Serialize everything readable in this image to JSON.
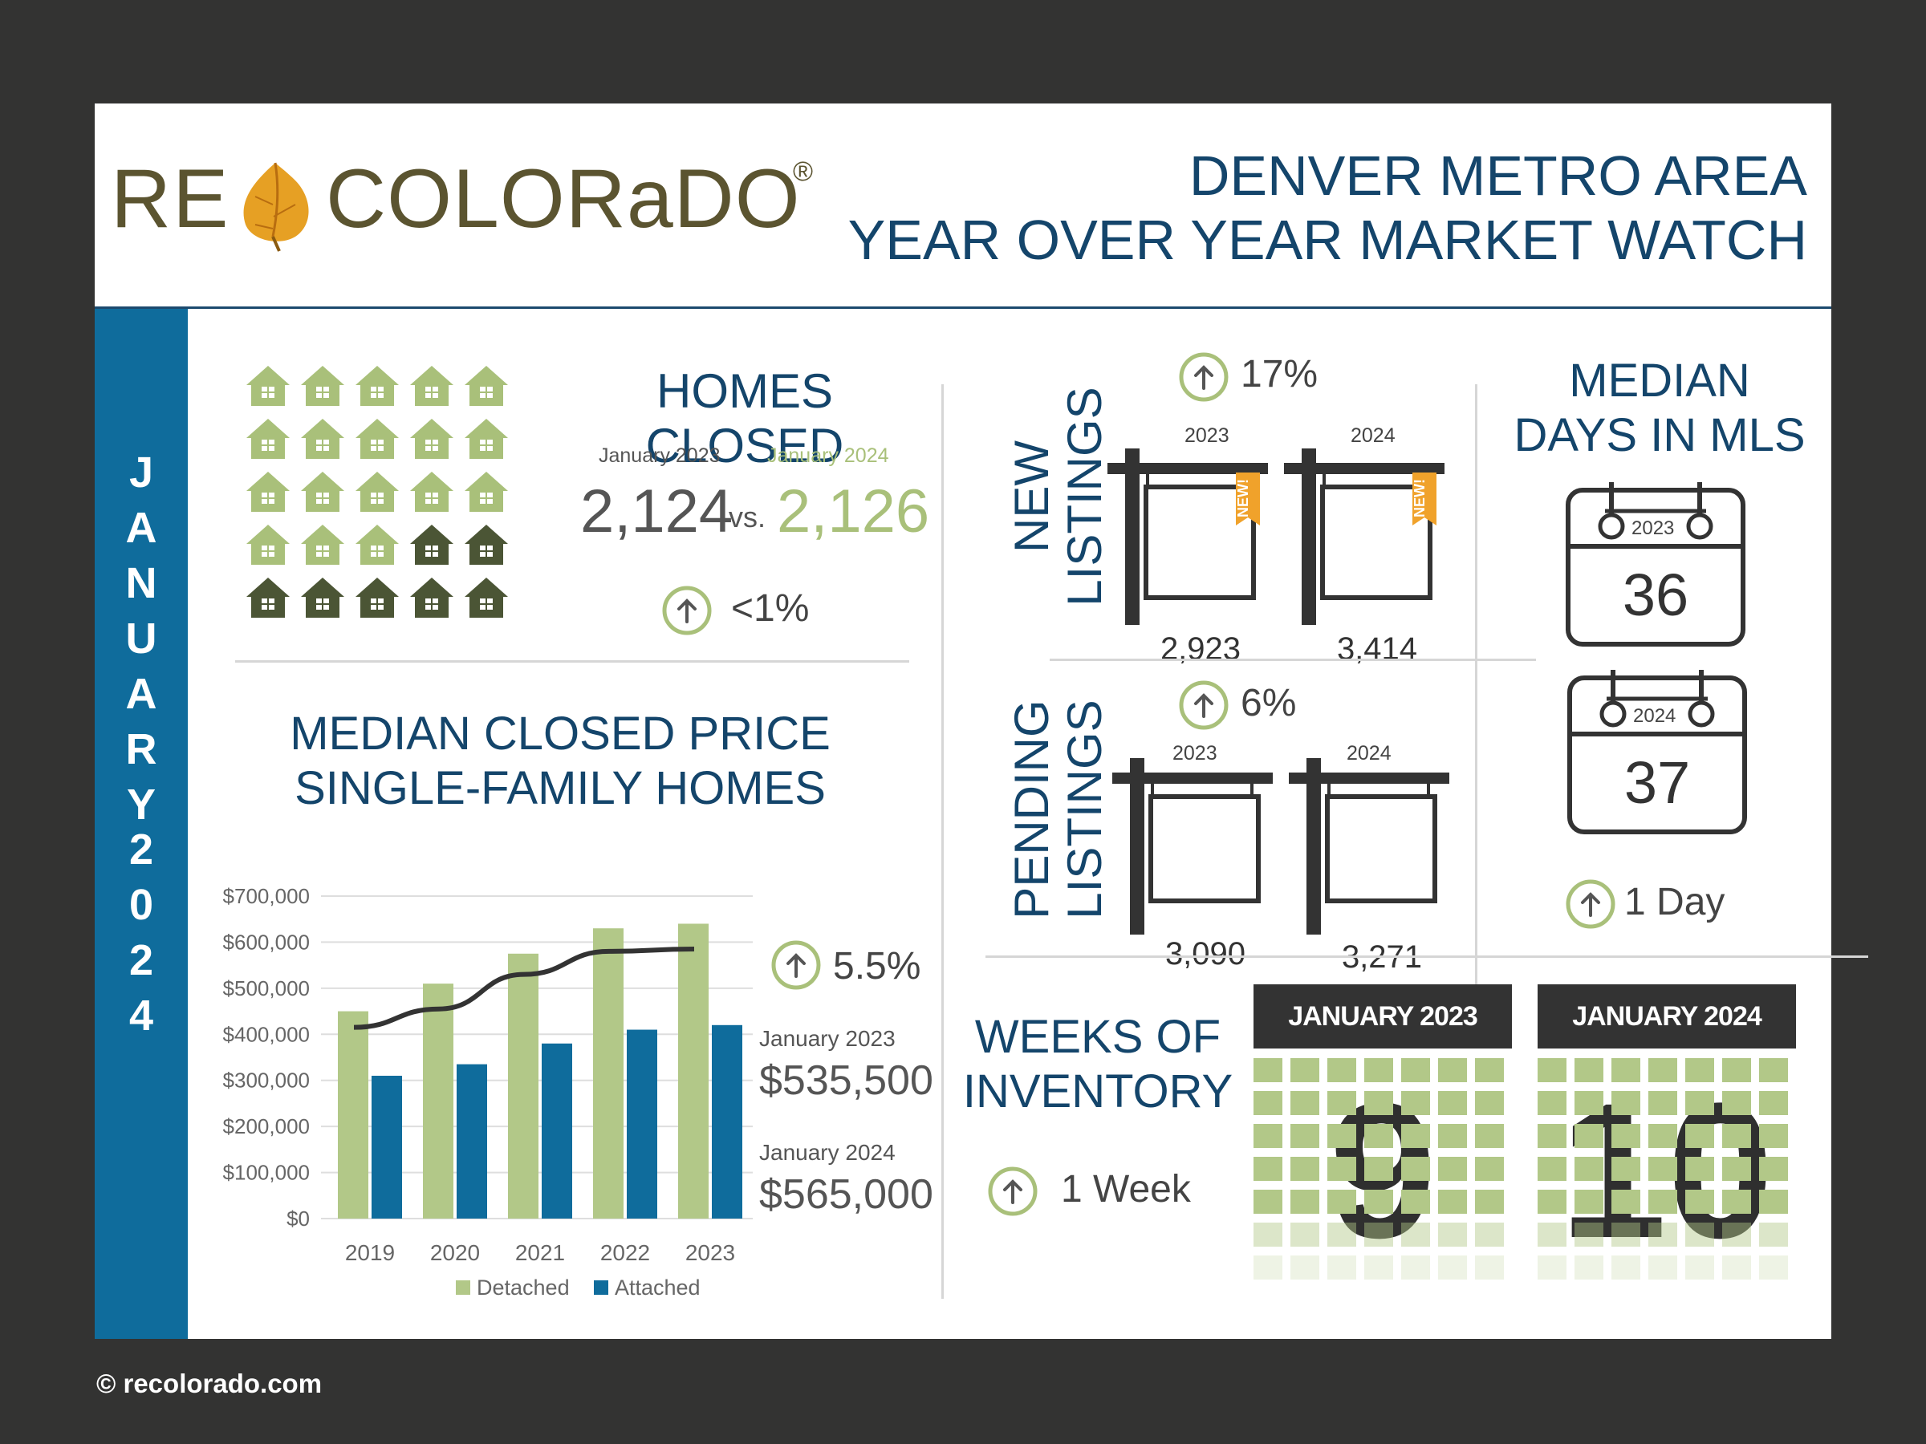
{
  "logo": {
    "re": "RE",
    "colorado": "COLORaDO",
    "reg": "®"
  },
  "header": {
    "title_line1": "DENVER METRO AREA",
    "title_line2": "YEAR OVER YEAR MARKET WATCH"
  },
  "sidebar": {
    "month_letters": [
      "J",
      "A",
      "N",
      "U",
      "A",
      "R",
      "Y"
    ],
    "year_digits": [
      "2",
      "0",
      "2",
      "4"
    ]
  },
  "homes_closed": {
    "title": "HOMES CLOSED",
    "label_2023": "January 2023",
    "label_2024": "January 2024",
    "value_2023": "2,124",
    "vs": "vs.",
    "value_2024": "2,126",
    "change": "<1%",
    "light_house_color": "#a9c07a",
    "dark_house_color": "#4b5535"
  },
  "median_price": {
    "title_line1": "MEDIAN CLOSED PRICE",
    "title_line2": "SINGLE-FAMILY HOMES",
    "change": "5.5%",
    "label_2023": "January 2023",
    "value_2023": "$535,500",
    "label_2024": "January 2024",
    "value_2024": "$565,000"
  },
  "chart_data": {
    "type": "bar",
    "categories": [
      "2019",
      "2020",
      "2021",
      "2022",
      "2023"
    ],
    "series": [
      {
        "name": "Detached",
        "values": [
          450000,
          510000,
          575000,
          630000,
          640000
        ],
        "color": "#b2c888"
      },
      {
        "name": "Attached",
        "values": [
          310000,
          335000,
          380000,
          410000,
          420000
        ],
        "color": "#0f6c9c"
      }
    ],
    "line": {
      "values": [
        415000,
        455000,
        530000,
        580000,
        585000
      ],
      "color": "#333333"
    },
    "yticks": [
      "$700,000",
      "$600,000",
      "$500,000",
      "$400,000",
      "$300,000",
      "$200,000",
      "$100,000",
      "$0"
    ],
    "ylim": [
      0,
      700000
    ],
    "grid": true,
    "legend_position": "bottom"
  },
  "new_listings": {
    "title_line1": "NEW",
    "title_line2": "LISTINGS",
    "change": "17%",
    "year_2023": "2023",
    "year_2024": "2024",
    "value_2023": "2,923",
    "value_2024": "3,414",
    "badge": "NEW!"
  },
  "pending_listings": {
    "title_line1": "PENDING",
    "title_line2": "LISTINGS",
    "change": "6%",
    "year_2023": "2023",
    "year_2024": "2024",
    "value_2023": "3,090",
    "value_2024": "3,271"
  },
  "days_in_mls": {
    "title_line1": "MEDIAN",
    "title_line2": "DAYS IN MLS",
    "year_2023": "2023",
    "value_2023": "36",
    "year_2024": "2024",
    "value_2024": "37",
    "change": "1 Day"
  },
  "weeks_inventory": {
    "title_line1": "WEEKS OF",
    "title_line2": "INVENTORY",
    "change": "1 Week",
    "head_2023": "JANUARY 2023",
    "value_2023": "9",
    "head_2024": "JANUARY 2024",
    "value_2024": "10"
  },
  "footer": {
    "copyright": "© recolorado.com"
  },
  "colors": {
    "navy": "#14456b",
    "blue": "#0f6c9c",
    "green": "#b2c888",
    "dark": "#333333"
  }
}
